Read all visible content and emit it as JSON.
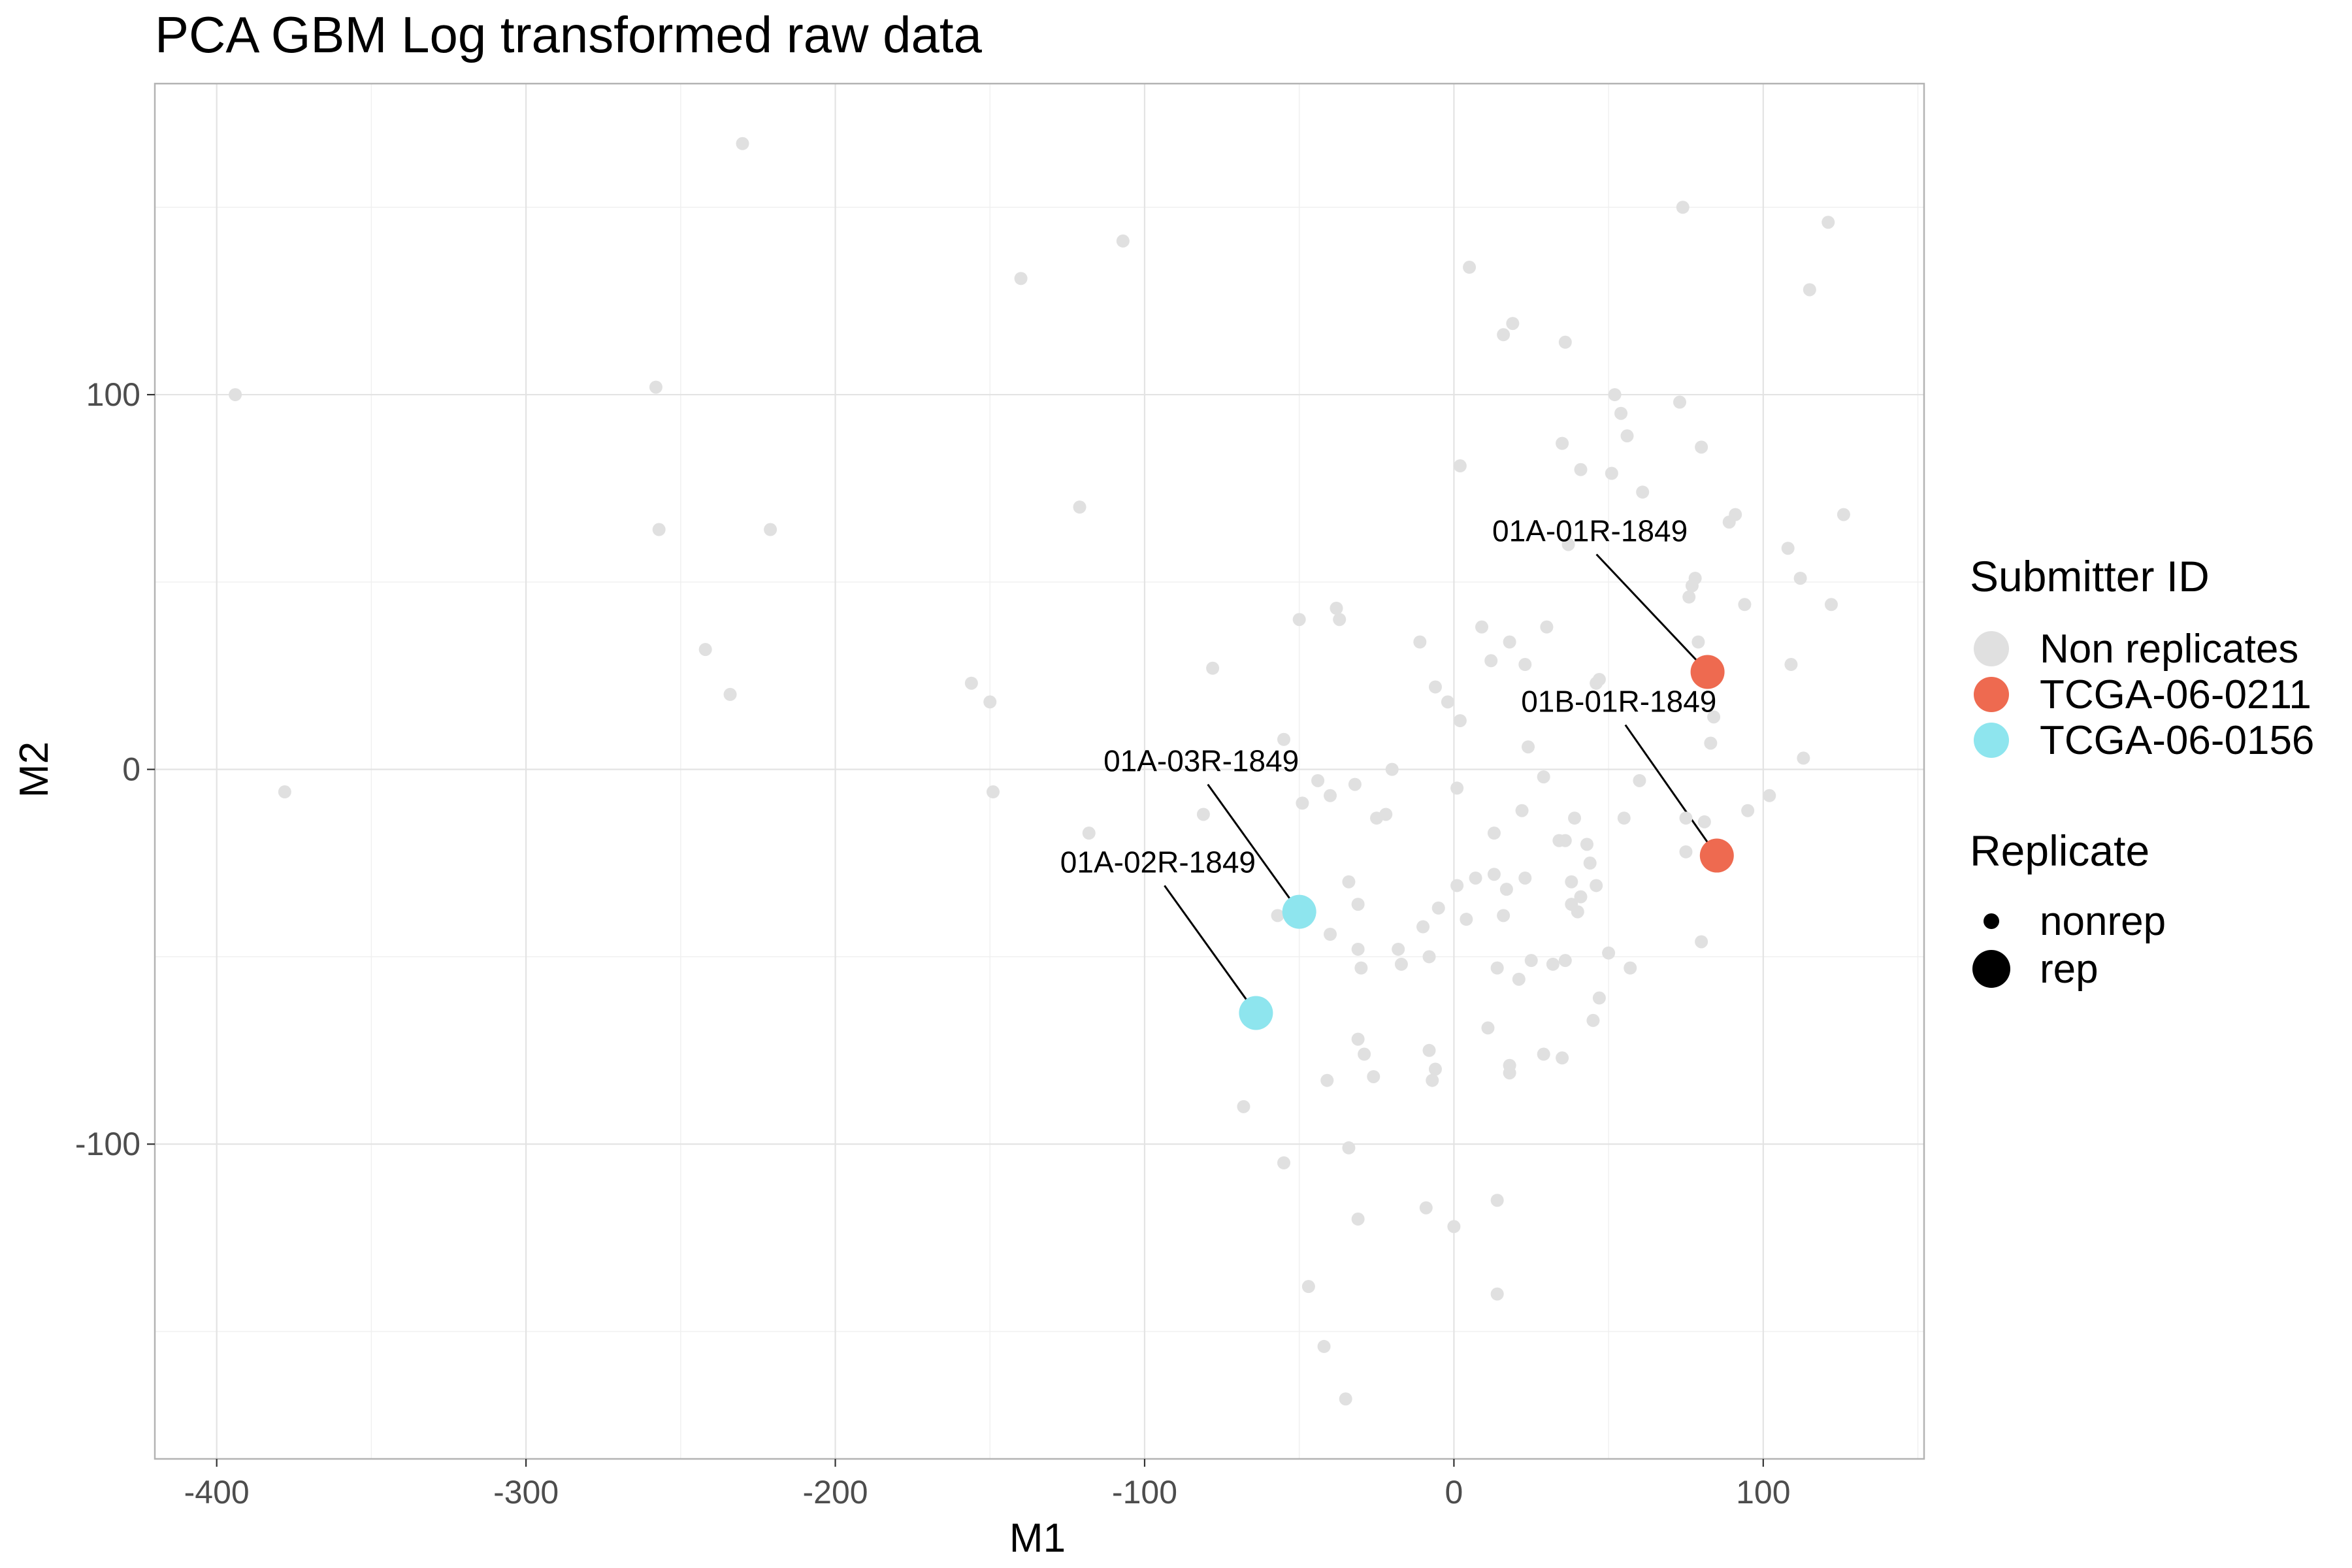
{
  "chart_data": {
    "type": "scatter",
    "title": "PCA GBM Log transformed raw data",
    "xlabel": "M1",
    "ylabel": "M2",
    "xlim": [
      -420,
      152
    ],
    "ylim": [
      -184,
      183
    ],
    "x_ticks": [
      -400,
      -300,
      -200,
      -100,
      0,
      100
    ],
    "y_ticks": [
      -100,
      0,
      100
    ],
    "x_tick_labels": [
      "-400",
      "-300",
      "-200",
      "-100",
      "0",
      "100"
    ],
    "y_tick_labels": [
      "-100",
      "0",
      "100"
    ],
    "grid": true,
    "legend_placement": "right",
    "legends": [
      {
        "title": "Submitter ID",
        "entries": [
          {
            "label": "Non replicates",
            "color": "#e0e0e0"
          },
          {
            "label": "TCGA-06-0211",
            "color": "#ee6a50"
          },
          {
            "label": "TCGA-06-0156",
            "color": "#8ee5ee"
          }
        ]
      },
      {
        "title": "Replicate",
        "entries": [
          {
            "label": "nonrep",
            "size": "small"
          },
          {
            "label": "rep",
            "size": "large"
          }
        ]
      }
    ],
    "series": [
      {
        "name": "Non replicates",
        "color": "#e0e0e0",
        "replicate": "nonrep",
        "points": [
          [
            -394,
            100
          ],
          [
            -378,
            -6
          ],
          [
            -258,
            102
          ],
          [
            -257,
            64
          ],
          [
            -242,
            32
          ],
          [
            -234,
            20
          ],
          [
            -230,
            167
          ],
          [
            -221,
            64
          ],
          [
            -156,
            23
          ],
          [
            -150,
            18
          ],
          [
            -149,
            -6
          ],
          [
            -140,
            131
          ],
          [
            -121,
            70
          ],
          [
            -118,
            -17
          ],
          [
            -107,
            141
          ],
          [
            -81,
            -12
          ],
          [
            -78,
            27
          ],
          [
            -68,
            -90
          ],
          [
            -57,
            -39
          ],
          [
            -55,
            8
          ],
          [
            -55,
            -105
          ],
          [
            -50,
            40
          ],
          [
            -49,
            -9
          ],
          [
            -47,
            -138
          ],
          [
            -44,
            -3
          ],
          [
            -42,
            -154
          ],
          [
            -41,
            -83
          ],
          [
            -40,
            -44
          ],
          [
            -40,
            -7
          ],
          [
            -38,
            43
          ],
          [
            -37,
            40
          ],
          [
            -35,
            -168
          ],
          [
            -34,
            -101
          ],
          [
            -34,
            -30
          ],
          [
            -32,
            -4
          ],
          [
            -31,
            -120
          ],
          [
            -31,
            -36
          ],
          [
            -31,
            -48
          ],
          [
            -31,
            -72
          ],
          [
            -30,
            -53
          ],
          [
            -29,
            -76
          ],
          [
            -26,
            -82
          ],
          [
            -25,
            -13
          ],
          [
            -22,
            -12
          ],
          [
            -20,
            0
          ],
          [
            -18,
            -48
          ],
          [
            -17,
            -52
          ],
          [
            -11,
            34
          ],
          [
            -10,
            -42
          ],
          [
            -9,
            -117
          ],
          [
            -8,
            -75
          ],
          [
            -8,
            -50
          ],
          [
            -7,
            -83
          ],
          [
            -6,
            -80
          ],
          [
            -6,
            22
          ],
          [
            -5,
            -37
          ],
          [
            -2,
            18
          ],
          [
            0,
            -122
          ],
          [
            1,
            -5
          ],
          [
            1,
            -31
          ],
          [
            2,
            13
          ],
          [
            2,
            81
          ],
          [
            4,
            -40
          ],
          [
            5,
            134
          ],
          [
            7,
            -29
          ],
          [
            9,
            38
          ],
          [
            11,
            -69
          ],
          [
            12,
            29
          ],
          [
            13,
            -28
          ],
          [
            13,
            -17
          ],
          [
            14,
            -53
          ],
          [
            14,
            -115
          ],
          [
            14,
            -140
          ],
          [
            16,
            -39
          ],
          [
            16,
            116
          ],
          [
            17,
            -32
          ],
          [
            18,
            -79
          ],
          [
            18,
            -81
          ],
          [
            18,
            34
          ],
          [
            19,
            119
          ],
          [
            21,
            -56
          ],
          [
            22,
            -11
          ],
          [
            23,
            -29
          ],
          [
            23,
            28
          ],
          [
            24,
            6
          ],
          [
            25,
            -51
          ],
          [
            29,
            -76
          ],
          [
            29,
            -2
          ],
          [
            30,
            38
          ],
          [
            32,
            -52
          ],
          [
            34,
            -19
          ],
          [
            35,
            -77
          ],
          [
            35,
            87
          ],
          [
            36,
            -19
          ],
          [
            36,
            114
          ],
          [
            36,
            -51
          ],
          [
            37,
            60
          ],
          [
            38,
            -36
          ],
          [
            38,
            -30
          ],
          [
            39,
            -13
          ],
          [
            40,
            -38
          ],
          [
            41,
            -34
          ],
          [
            41,
            80
          ],
          [
            43,
            -20
          ],
          [
            44,
            -25
          ],
          [
            45,
            -67
          ],
          [
            46,
            23
          ],
          [
            46,
            -31
          ],
          [
            47,
            -61
          ],
          [
            47,
            24
          ],
          [
            50,
            -49
          ],
          [
            51,
            79
          ],
          [
            52,
            100
          ],
          [
            54,
            95
          ],
          [
            55,
            -13
          ],
          [
            56,
            89
          ],
          [
            57,
            -53
          ],
          [
            60,
            -3
          ],
          [
            61,
            74
          ],
          [
            73,
            98
          ],
          [
            74,
            150
          ],
          [
            75,
            -13
          ],
          [
            75,
            -22
          ],
          [
            76,
            46
          ],
          [
            77,
            49
          ],
          [
            78,
            51
          ],
          [
            79,
            34
          ],
          [
            80,
            -46
          ],
          [
            80,
            86
          ],
          [
            81,
            -14
          ],
          [
            83,
            7
          ],
          [
            84,
            14
          ],
          [
            89,
            66
          ],
          [
            91,
            68
          ],
          [
            94,
            44
          ],
          [
            95,
            -11
          ],
          [
            102,
            -7
          ],
          [
            108,
            59
          ],
          [
            109,
            28
          ],
          [
            112,
            51
          ],
          [
            113,
            3
          ],
          [
            115,
            128
          ],
          [
            121,
            146
          ],
          [
            122,
            44
          ],
          [
            126,
            68
          ]
        ]
      },
      {
        "name": "TCGA-06-0211",
        "color": "#ee6a50",
        "replicate": "rep",
        "points": [
          [
            82,
            26
          ],
          [
            85,
            -23
          ]
        ],
        "labels": [
          "01A-01R-1849",
          "01B-01R-1849"
        ]
      },
      {
        "name": "TCGA-06-0156",
        "color": "#8ee5ee",
        "replicate": "rep",
        "points": [
          [
            -50,
            -38
          ],
          [
            -64,
            -65
          ]
        ],
        "labels": [
          "01A-03R-1849",
          "01A-02R-1849"
        ]
      }
    ]
  }
}
